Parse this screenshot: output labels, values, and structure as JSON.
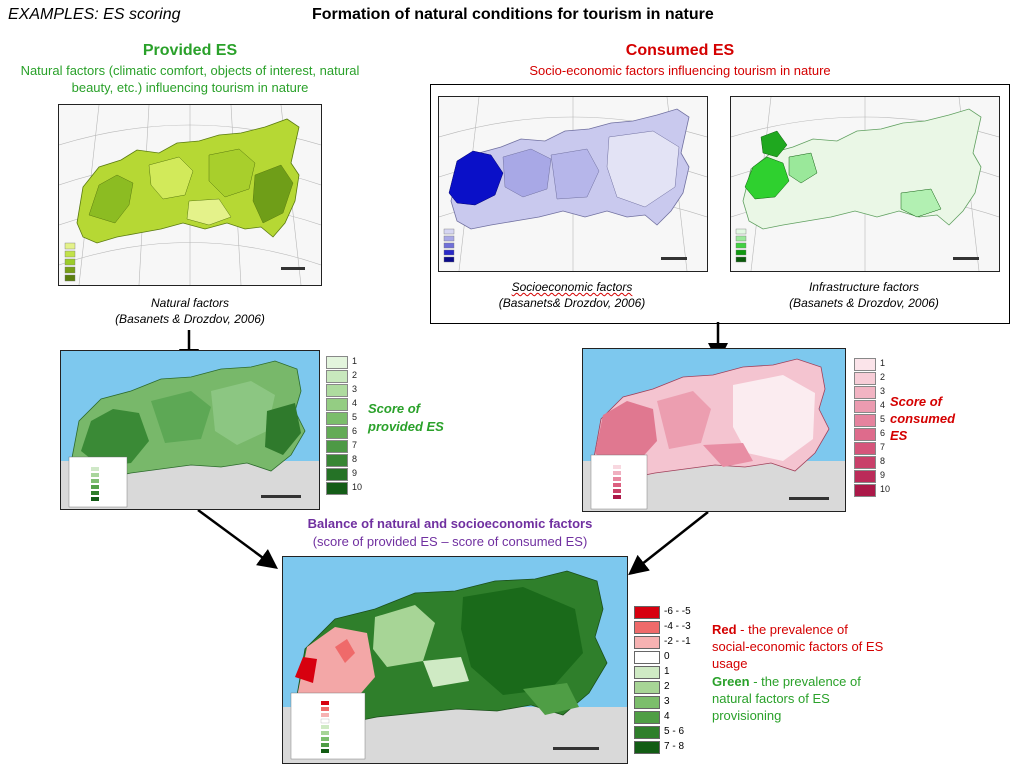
{
  "header": {
    "examples_label": "EXAMPLES:  ES scoring",
    "main_title": "Formation of natural conditions for tourism in nature"
  },
  "provided": {
    "title": "Provided ES",
    "subtitle_line1": "Natural factors (climatic comfort, objects of interest, natural",
    "subtitle_line2": "beauty, etc.) influencing tourism in nature",
    "caption_line1": "Natural factors",
    "caption_line2": "(Basanets & Drozdov, 2006)",
    "score_line1": "Score of",
    "score_line2": "provided ES",
    "legend": [
      "1",
      "2",
      "3",
      "4",
      "5",
      "6",
      "7",
      "8",
      "9",
      "10"
    ]
  },
  "consumed": {
    "title": "Consumed ES",
    "subtitle": "Socio-economic factors influencing tourism in nature",
    "socio_caption_line1": "Socioeconomic factors",
    "socio_caption_line2": "(Basanets& Drozdov, 2006)",
    "infra_caption_line1": "Infrastructure factors",
    "infra_caption_line2": "(Basanets & Drozdov, 2006)",
    "score_line1": "Score of",
    "score_line2": "consumed",
    "score_line3": "ES",
    "legend": [
      "1",
      "2",
      "3",
      "4",
      "5",
      "6",
      "7",
      "8",
      "9",
      "10"
    ]
  },
  "balance": {
    "title": "Balance of natural and socioeconomic factors",
    "subtitle": "(score of provided ES – score of consumed ES)",
    "legend": [
      "-6 - -5",
      "-4 - -3",
      "-2 - -1",
      "0",
      "1",
      "2",
      "3",
      "4",
      "5 - 6",
      "7 - 8"
    ],
    "note_red_bold": "Red",
    "note_red_rest1": " - the prevalence of",
    "note_red_rest2": "social-economic factors of ES",
    "note_red_rest3": "usage",
    "note_green_bold": "Green",
    "note_green_rest1": " - the prevalence of",
    "note_green_rest2": "natural factors of ES",
    "note_green_rest3": "provisioning"
  },
  "colors": {
    "green_title": "#2aa12a",
    "red_title": "#d40000",
    "purple_title": "#7030a0",
    "provided_scale": [
      "#e3f5dd",
      "#c8e8bd",
      "#aedb9f",
      "#94cd83",
      "#7bbd6b",
      "#63ab56",
      "#4d9945",
      "#388634",
      "#257226",
      "#145c17"
    ],
    "consumed_scale": [
      "#fbe4ea",
      "#f7cdd7",
      "#f2b4c3",
      "#eb9bb0",
      "#e5839e",
      "#de6b8c",
      "#d5557b",
      "#c9406a",
      "#bb2b59",
      "#ab1848"
    ],
    "balance_scale": [
      "#d7000f",
      "#ef6a6a",
      "#f6b2b2",
      "#ffffff",
      "#cfeac4",
      "#a7d596",
      "#7cbe6c",
      "#4f9e45",
      "#2f7f2b",
      "#125c14"
    ]
  }
}
